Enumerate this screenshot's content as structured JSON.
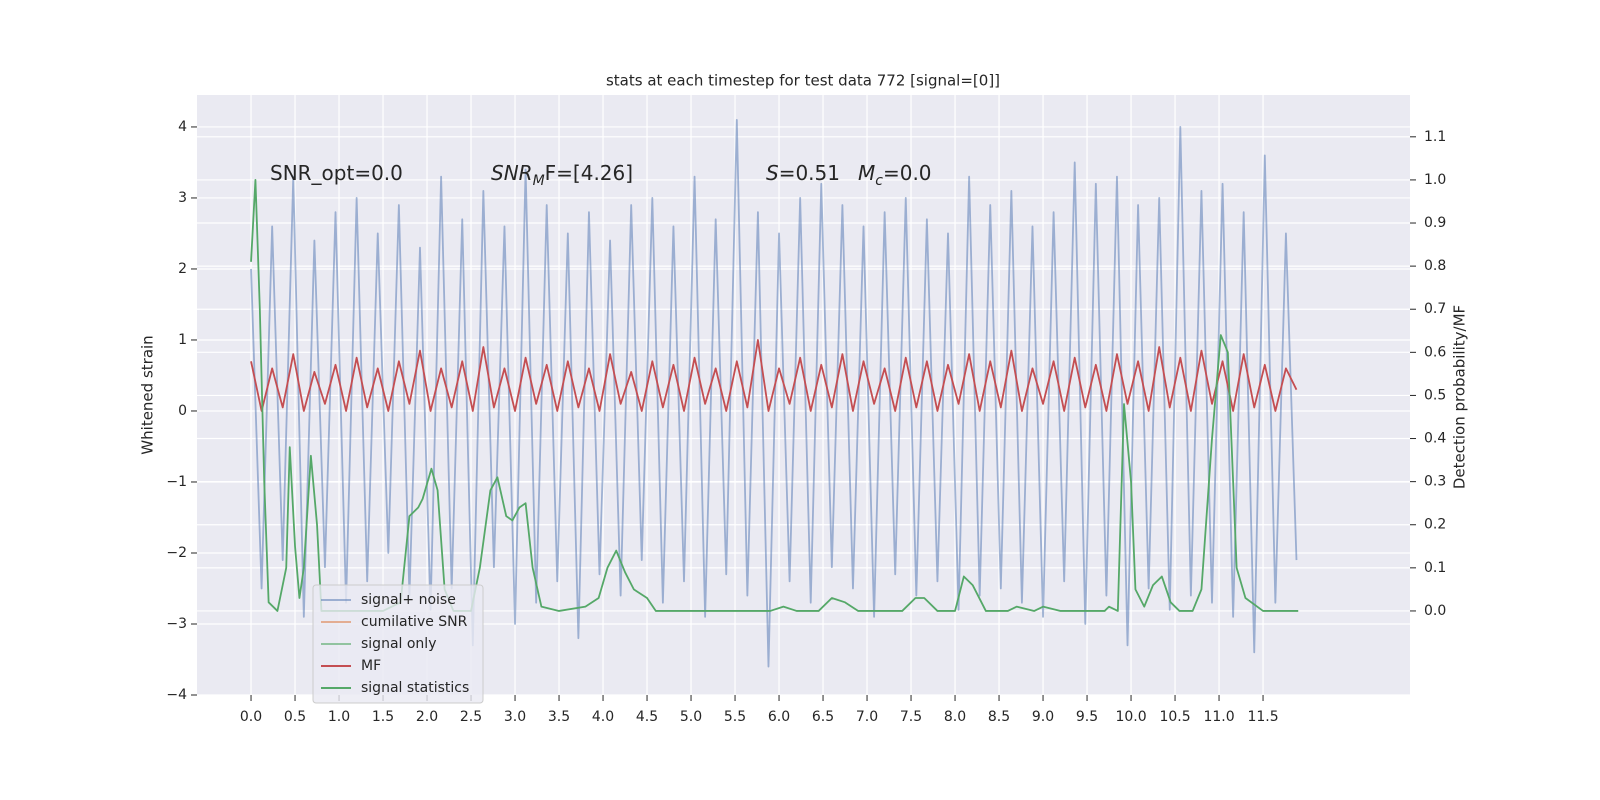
{
  "chart_data": {
    "type": "line",
    "title": "stats at each timestep for test data 772 [signal=[0]]",
    "ylabel": "Whitened strain",
    "y2label": "Detection probability/MF",
    "annotations": [
      {
        "parts": [
          {
            "text": "SNR_opt=0.0"
          }
        ]
      },
      {
        "parts": [
          {
            "text": "SNR",
            "italic": true
          },
          {
            "text": "M",
            "italic": true,
            "sub": true
          },
          {
            "text": "F=[4.26]"
          }
        ]
      },
      {
        "parts": [
          {
            "text": "S",
            "italic": true
          },
          {
            "text": "=0.51"
          }
        ]
      },
      {
        "parts": [
          {
            "text": "M",
            "italic": true
          },
          {
            "text": "c",
            "italic": true,
            "sub": true
          },
          {
            "text": "=0.0"
          }
        ]
      }
    ],
    "grid": true,
    "legend": "lower left",
    "xlim": [
      -0.614,
      13.17
    ],
    "ylim": [
      -4.0,
      4.45
    ],
    "y2lim": [
      -0.195,
      1.197
    ],
    "xticks": [
      {
        "value": 0,
        "label": "0.0"
      },
      0.5,
      {
        "value": 1,
        "label": "1.0"
      },
      1.5,
      {
        "value": 2,
        "label": "2.0"
      },
      2.5,
      {
        "value": 3,
        "label": "3.0"
      },
      3.5,
      {
        "value": 4,
        "label": "4.0"
      },
      4.5,
      {
        "value": 5,
        "label": "5.0"
      },
      5.5,
      {
        "value": 6,
        "label": "6.0"
      },
      6.5,
      {
        "value": 7,
        "label": "7.0"
      },
      7.5,
      {
        "value": 8,
        "label": "8.0"
      },
      8.5,
      {
        "value": 9,
        "label": "9.0"
      },
      9.5,
      {
        "value": 10,
        "label": "10.0"
      },
      10.5,
      {
        "value": 11,
        "label": "11.0"
      },
      11.5
    ],
    "yticks": [
      {
        "value": -4,
        "label": "−4"
      },
      {
        "value": -3,
        "label": "−3"
      },
      {
        "value": -2,
        "label": "−2"
      },
      {
        "value": -1,
        "label": "−1"
      },
      0,
      1,
      2,
      3,
      4
    ],
    "y2ticks": [
      {
        "value": 0,
        "label": "0.0"
      },
      0.1,
      0.2,
      0.3,
      0.4,
      0.5,
      0.6,
      0.7,
      0.8,
      0.9,
      {
        "value": 1,
        "label": "1.0"
      },
      1.1
    ],
    "x": [
      0,
      0.12,
      0.24,
      0.36,
      0.48,
      0.6,
      0.72,
      0.84,
      0.96,
      1.08,
      1.2,
      1.32,
      1.44,
      1.56,
      1.68,
      1.8,
      1.92,
      2.04,
      2.16,
      2.28,
      2.4,
      2.52,
      2.64,
      2.76,
      2.88,
      3,
      3.12,
      3.24,
      3.36,
      3.48,
      3.6,
      3.72,
      3.84,
      3.96,
      4.08,
      4.2,
      4.32,
      4.44,
      4.56,
      4.68,
      4.8,
      4.92,
      5.04,
      5.16,
      5.28,
      5.4,
      5.52,
      5.64,
      5.76,
      5.88,
      6,
      6.12,
      6.24,
      6.36,
      6.48,
      6.6,
      6.72,
      6.84,
      6.96,
      7.08,
      7.2,
      7.32,
      7.44,
      7.56,
      7.68,
      7.8,
      7.92,
      8.04,
      8.16,
      8.28,
      8.4,
      8.52,
      8.64,
      8.76,
      8.88,
      9,
      9.12,
      9.24,
      9.36,
      9.48,
      9.6,
      9.72,
      9.84,
      9.96,
      10.08,
      10.2,
      10.32,
      10.44,
      10.56,
      10.68,
      10.8,
      10.92,
      11.04,
      11.16,
      11.28,
      11.4,
      11.52,
      11.64,
      11.76,
      11.88
    ],
    "series": [
      {
        "name": "signal+ noise",
        "color": "#4c72b0",
        "alpha": 0.5,
        "values": [
          2.0,
          -2.5,
          2.6,
          -2.1,
          3.3,
          -2.9,
          2.4,
          -2.2,
          2.8,
          -2.7,
          3.0,
          -2.4,
          2.5,
          -2.0,
          2.9,
          -2.6,
          2.3,
          -2.8,
          3.3,
          -2.5,
          2.7,
          -3.3,
          3.1,
          -2.2,
          2.6,
          -3.0,
          3.4,
          -2.7,
          2.9,
          -2.4,
          2.5,
          -3.2,
          2.8,
          -2.3,
          2.4,
          -2.6,
          2.9,
          -2.1,
          3.0,
          -2.7,
          2.6,
          -2.4,
          3.3,
          -2.9,
          2.7,
          -2.3,
          4.1,
          -2.6,
          2.8,
          -3.6,
          2.5,
          -2.4,
          3.0,
          -2.7,
          3.2,
          -2.2,
          2.9,
          -2.5,
          2.6,
          -2.9,
          2.8,
          -2.3,
          3.0,
          -2.6,
          2.7,
          -2.4,
          2.5,
          -2.8,
          3.3,
          -2.6,
          2.9,
          -2.5,
          3.1,
          -2.7,
          2.6,
          -2.9,
          2.8,
          -2.4,
          3.5,
          -3.0,
          3.2,
          -2.6,
          3.3,
          -3.3,
          2.9,
          -2.5,
          3.0,
          -2.8,
          4.0,
          -2.6,
          3.1,
          -2.7,
          3.2,
          -2.9,
          2.8,
          -3.4,
          3.6,
          -2.7,
          2.5,
          -2.1
        ]
      },
      {
        "name": "cumilative SNR",
        "color": "#dd8452",
        "alpha": 0.6,
        "x": [],
        "values": []
      },
      {
        "name": "signal only",
        "color": "#55a868",
        "alpha": 0.6,
        "x": [],
        "values": []
      },
      {
        "name": "MF",
        "color": "#c44e52",
        "alpha": 1,
        "values": [
          0.7,
          0.0,
          0.6,
          0.05,
          0.8,
          0.0,
          0.55,
          0.1,
          0.65,
          0.0,
          0.75,
          0.05,
          0.6,
          0.0,
          0.7,
          0.1,
          0.85,
          0.0,
          0.6,
          0.05,
          0.7,
          0.0,
          0.9,
          0.05,
          0.6,
          0.0,
          0.75,
          0.1,
          0.65,
          0.0,
          0.7,
          0.05,
          0.6,
          0.0,
          0.8,
          0.1,
          0.55,
          0.0,
          0.7,
          0.05,
          0.65,
          0.0,
          0.75,
          0.1,
          0.6,
          0.0,
          0.7,
          0.05,
          1.0,
          0.0,
          0.6,
          0.1,
          0.75,
          0.0,
          0.65,
          0.05,
          0.8,
          0.0,
          0.7,
          0.1,
          0.6,
          0.0,
          0.75,
          0.05,
          0.7,
          0.0,
          0.65,
          0.1,
          0.8,
          0.0,
          0.7,
          0.05,
          0.85,
          0.0,
          0.6,
          0.1,
          0.7,
          0.0,
          0.75,
          0.05,
          0.65,
          0.0,
          0.8,
          0.1,
          0.7,
          0.0,
          0.9,
          0.05,
          0.75,
          0.0,
          0.85,
          0.1,
          0.7,
          0.0,
          0.8,
          0.05,
          0.65,
          0.0,
          0.6,
          0.3
        ]
      },
      {
        "name": "signal statistics",
        "color": "#55a868",
        "alpha": 1,
        "axis": "y2",
        "x": [
          0,
          0.05,
          0.1,
          0.15,
          0.2,
          0.3,
          0.4,
          0.44,
          0.5,
          0.55,
          0.6,
          0.68,
          0.75,
          0.8,
          0.9,
          1.0,
          1.5,
          1.7,
          1.8,
          1.9,
          1.95,
          2.05,
          2.12,
          2.2,
          2.3,
          2.5,
          2.6,
          2.72,
          2.8,
          2.9,
          2.97,
          3.05,
          3.12,
          3.2,
          3.3,
          3.5,
          3.8,
          3.95,
          4.05,
          4.15,
          4.25,
          4.35,
          4.5,
          4.6,
          5.0,
          5.5,
          5.9,
          6.05,
          6.2,
          6.45,
          6.6,
          6.75,
          6.9,
          7.4,
          7.55,
          7.65,
          7.8,
          8.0,
          8.1,
          8.2,
          8.35,
          8.6,
          8.7,
          8.9,
          9.0,
          9.2,
          9.7,
          9.75,
          9.85,
          9.92,
          10.0,
          10.05,
          10.15,
          10.25,
          10.35,
          10.45,
          10.55,
          10.7,
          10.8,
          10.92,
          11.02,
          11.1,
          11.2,
          11.3,
          11.5,
          11.8,
          11.9
        ],
        "values": [
          0.81,
          1.0,
          0.7,
          0.3,
          0.02,
          0.0,
          0.1,
          0.38,
          0.15,
          0.03,
          0.1,
          0.36,
          0.2,
          0.0,
          0.0,
          0.0,
          0.0,
          0.02,
          0.22,
          0.24,
          0.26,
          0.33,
          0.28,
          0.05,
          0.0,
          0.0,
          0.1,
          0.28,
          0.31,
          0.22,
          0.21,
          0.24,
          0.25,
          0.1,
          0.01,
          0.0,
          0.01,
          0.03,
          0.1,
          0.14,
          0.09,
          0.05,
          0.03,
          0.0,
          0.0,
          0.0,
          0.0,
          0.01,
          0.0,
          0.0,
          0.03,
          0.02,
          0.0,
          0.0,
          0.03,
          0.03,
          0.0,
          0.0,
          0.08,
          0.06,
          0.0,
          0.0,
          0.01,
          0.0,
          0.01,
          0.0,
          0.0,
          0.01,
          0.0,
          0.48,
          0.3,
          0.05,
          0.01,
          0.06,
          0.08,
          0.02,
          0.0,
          0.0,
          0.05,
          0.4,
          0.64,
          0.6,
          0.1,
          0.03,
          0.0,
          0.0,
          0.0
        ]
      }
    ]
  }
}
